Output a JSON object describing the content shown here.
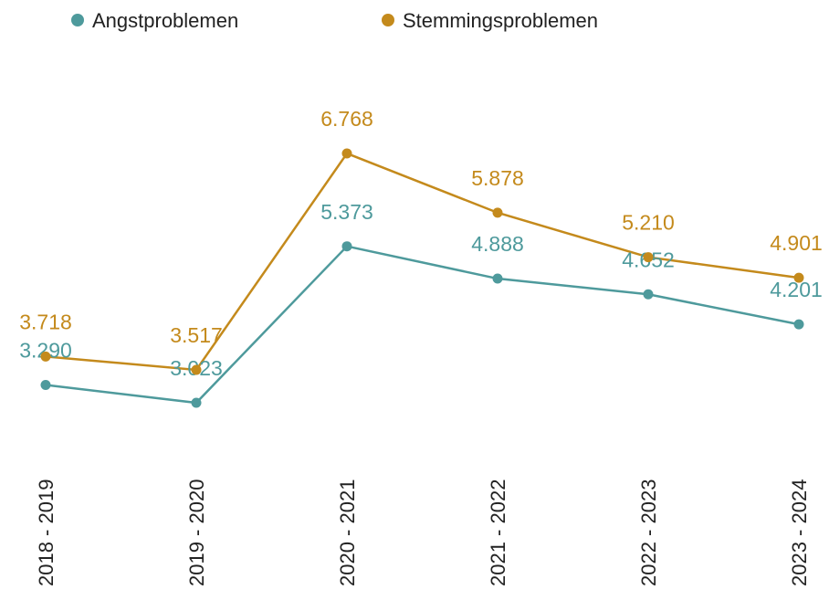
{
  "chart_data": {
    "type": "line",
    "categories": [
      "2018 - 2019",
      "2019 - 2020",
      "2020 - 2021",
      "2021 - 2022",
      "2022 - 2023",
      "2023 - 2024"
    ],
    "series": [
      {
        "name": "Angstproblemen",
        "color": "#4e9a9c",
        "values": [
          3290,
          3023,
          5373,
          4888,
          4652,
          4201
        ],
        "value_labels": [
          "3.290",
          "3.023",
          "5.373",
          "4.888",
          "4.652",
          "4.201"
        ]
      },
      {
        "name": "Stemmingsproblemen",
        "color": "#c48a1c",
        "values": [
          3718,
          3517,
          6768,
          5878,
          5210,
          4901
        ],
        "value_labels": [
          "3.718",
          "3.517",
          "6.768",
          "5.878",
          "5.210",
          "4.901"
        ]
      }
    ],
    "legend": "top"
  }
}
